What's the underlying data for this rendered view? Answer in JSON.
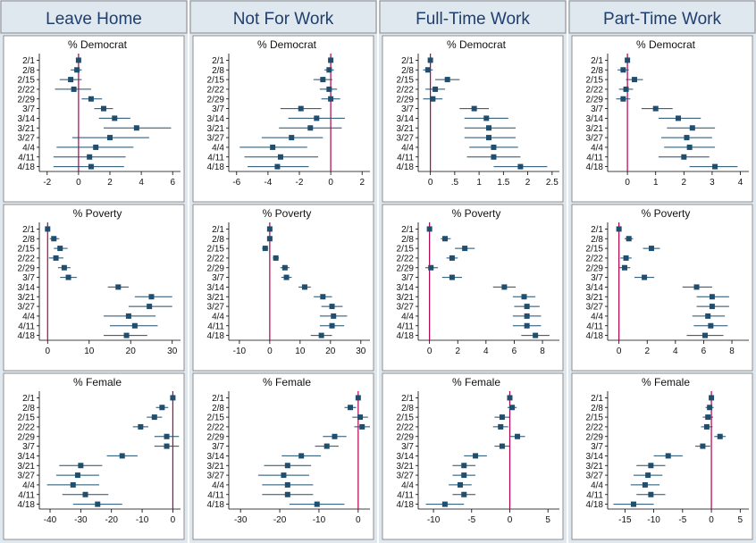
{
  "columns": [
    "Leave Home",
    "Not For Work",
    "Full-Time Work",
    "Part-Time Work"
  ],
  "row_titles": [
    "% Democrat",
    "% Poverty",
    "% Female"
  ],
  "dates": [
    "2/1",
    "2/8",
    "2/15",
    "2/22",
    "2/29",
    "3/7",
    "3/14",
    "3/21",
    "3/27",
    "4/4",
    "4/11",
    "4/18"
  ],
  "colors": {
    "header_bg": "#dfe7ef",
    "outer_bg": "#dfe7ef",
    "marker": "#1f4e6e",
    "ci_line": "#1f4e6e",
    "ref_line": "#b0004e",
    "grid_line": "#000000"
  },
  "chart_data": [
    {
      "type": "scatter",
      "column": "Leave Home",
      "panel": "% Democrat",
      "ylabels": [
        "2/1",
        "2/8",
        "2/15",
        "2/22",
        "2/29",
        "3/7",
        "3/14",
        "3/21",
        "3/27",
        "4/4",
        "4/11",
        "4/18"
      ],
      "xlim": [
        -2.5,
        6.5
      ],
      "xticks": [
        -2,
        0,
        2,
        4,
        6
      ],
      "xticklabels": [
        "-2",
        "0",
        "2",
        "4",
        "6"
      ],
      "points": [
        [
          0,
          -0.1,
          0.1
        ],
        [
          -0.1,
          -0.5,
          0.2
        ],
        [
          -0.5,
          -1.2,
          0.2
        ],
        [
          -0.3,
          -1.5,
          0.8
        ],
        [
          0.8,
          0.2,
          1.5
        ],
        [
          1.6,
          1.0,
          2.2
        ],
        [
          2.3,
          1.3,
          3.3
        ],
        [
          3.7,
          1.6,
          5.9
        ],
        [
          2.0,
          -0.4,
          4.5
        ],
        [
          1.1,
          -1.4,
          3.5
        ],
        [
          0.7,
          -1.6,
          3.0
        ],
        [
          0.8,
          -1.6,
          2.9
        ]
      ]
    },
    {
      "type": "scatter",
      "column": "Not For Work",
      "panel": "% Democrat",
      "ylabels": [
        "2/1",
        "2/8",
        "2/15",
        "2/22",
        "2/29",
        "3/7",
        "3/14",
        "3/21",
        "3/27",
        "4/4",
        "4/11",
        "4/18"
      ],
      "xlim": [
        -6.5,
        2.5
      ],
      "xticks": [
        -6,
        -4,
        -2,
        0,
        2
      ],
      "xticklabels": [
        "-6",
        "-4",
        "-2",
        "0",
        "2"
      ],
      "points": [
        [
          0,
          -0.1,
          0.1
        ],
        [
          -0.1,
          -0.4,
          0.2
        ],
        [
          -0.5,
          -1.1,
          0.1
        ],
        [
          -0.1,
          -0.7,
          0.4
        ],
        [
          0,
          -0.6,
          0.6
        ],
        [
          -1.9,
          -3.2,
          -0.6
        ],
        [
          -0.9,
          -2.7,
          0.9
        ],
        [
          -1.3,
          -3.3,
          0.7
        ],
        [
          -2.5,
          -4.4,
          -0.5
        ],
        [
          -3.7,
          -5.8,
          -1.5
        ],
        [
          -3.2,
          -5.5,
          -0.8
        ],
        [
          -3.4,
          -5.3,
          -1.4
        ]
      ]
    },
    {
      "type": "scatter",
      "column": "Full-Time Work",
      "panel": "% Democrat",
      "ylabels": [
        "2/1",
        "2/8",
        "2/15",
        "2/22",
        "2/29",
        "3/7",
        "3/14",
        "3/21",
        "3/27",
        "4/4",
        "4/11",
        "4/18"
      ],
      "xlim": [
        -0.25,
        2.65
      ],
      "xticks": [
        0,
        0.5,
        1,
        1.5,
        2,
        2.5
      ],
      "xticklabels": [
        "0",
        ".5",
        "1",
        "1.5",
        "2",
        "2.5"
      ],
      "points": [
        [
          0,
          -0.02,
          0.02
        ],
        [
          -0.05,
          -0.15,
          0.05
        ],
        [
          0.35,
          0.1,
          0.6
        ],
        [
          0.1,
          -0.1,
          0.3
        ],
        [
          0.05,
          -0.15,
          0.25
        ],
        [
          0.9,
          0.6,
          1.2
        ],
        [
          1.15,
          0.7,
          1.6
        ],
        [
          1.2,
          0.7,
          1.75
        ],
        [
          1.2,
          0.7,
          1.75
        ],
        [
          1.3,
          0.8,
          1.8
        ],
        [
          1.3,
          0.75,
          1.85
        ],
        [
          1.85,
          1.3,
          2.4
        ]
      ]
    },
    {
      "type": "scatter",
      "column": "Part-Time Work",
      "panel": "% Democrat",
      "ylabels": [
        "2/1",
        "2/8",
        "2/15",
        "2/22",
        "2/29",
        "3/7",
        "3/14",
        "3/21",
        "3/27",
        "4/4",
        "4/11",
        "4/18"
      ],
      "xlim": [
        -0.7,
        4.3
      ],
      "xticks": [
        0,
        1,
        2,
        3,
        4
      ],
      "xticklabels": [
        "0",
        "1",
        "2",
        "3",
        "4"
      ],
      "points": [
        [
          0,
          -0.05,
          0.05
        ],
        [
          -0.15,
          -0.35,
          0.05
        ],
        [
          0.25,
          -0.05,
          0.55
        ],
        [
          -0.05,
          -0.3,
          0.2
        ],
        [
          -0.15,
          -0.4,
          0.1
        ],
        [
          1.0,
          0.5,
          1.6
        ],
        [
          1.8,
          1.1,
          2.6
        ],
        [
          2.3,
          1.4,
          3.1
        ],
        [
          2.1,
          1.2,
          3.0
        ],
        [
          2.2,
          1.3,
          3.1
        ],
        [
          2.0,
          1.1,
          2.9
        ],
        [
          3.1,
          2.2,
          3.9
        ]
      ]
    },
    {
      "type": "scatter",
      "column": "Leave Home",
      "panel": "% Poverty",
      "ylabels": [
        "2/1",
        "2/8",
        "2/15",
        "2/22",
        "2/29",
        "3/7",
        "3/14",
        "3/21",
        "3/27",
        "4/4",
        "4/11",
        "4/18"
      ],
      "xlim": [
        -2,
        32
      ],
      "xticks": [
        0,
        10,
        20,
        30
      ],
      "xticklabels": [
        "0",
        "10",
        "20",
        "30"
      ],
      "points": [
        [
          0,
          -0.3,
          0.3
        ],
        [
          1.5,
          0.5,
          2.8
        ],
        [
          3.0,
          1.5,
          4.8
        ],
        [
          2.0,
          0.3,
          3.8
        ],
        [
          4.0,
          2.5,
          5.5
        ],
        [
          5.0,
          3.0,
          7.0
        ],
        [
          17.0,
          14.5,
          19.5
        ],
        [
          25.0,
          21.0,
          30.0
        ],
        [
          24.5,
          19.5,
          30.0
        ],
        [
          19.5,
          13.5,
          26.0
        ],
        [
          21.0,
          15.0,
          26.5
        ],
        [
          19.0,
          13.5,
          24.0
        ]
      ]
    },
    {
      "type": "scatter",
      "column": "Not For Work",
      "panel": "% Poverty",
      "ylabels": [
        "2/1",
        "2/8",
        "2/15",
        "2/22",
        "2/29",
        "3/7",
        "3/14",
        "3/21",
        "3/27",
        "4/4",
        "4/11",
        "4/18"
      ],
      "xlim": [
        -13.5,
        33
      ],
      "xticks": [
        -10,
        0,
        10,
        20,
        30
      ],
      "xticklabels": [
        "-10",
        "0",
        "10",
        "20",
        "30"
      ],
      "points": [
        [
          0,
          -0.8,
          0.8
        ],
        [
          0,
          -0.8,
          0.8
        ],
        [
          -1.5,
          -2.5,
          -0.5
        ],
        [
          2.0,
          1.0,
          3.0
        ],
        [
          5.0,
          3.5,
          6.5
        ],
        [
          5.5,
          3.8,
          7.2
        ],
        [
          11.5,
          9.5,
          13.5
        ],
        [
          17.5,
          14.5,
          20.5
        ],
        [
          20.5,
          17.0,
          24.0
        ],
        [
          21.0,
          16.5,
          25.5
        ],
        [
          20.5,
          16.5,
          24.5
        ],
        [
          17.0,
          13.5,
          20.5
        ]
      ]
    },
    {
      "type": "scatter",
      "column": "Full-Time Work",
      "panel": "% Poverty",
      "ylabels": [
        "2/1",
        "2/8",
        "2/15",
        "2/22",
        "2/29",
        "3/7",
        "3/14",
        "3/21",
        "3/27",
        "4/4",
        "4/11",
        "4/18"
      ],
      "xlim": [
        -0.8,
        9.2
      ],
      "xticks": [
        0,
        2,
        4,
        6,
        8
      ],
      "xticklabels": [
        "0",
        "2",
        "4",
        "6",
        "8"
      ],
      "points": [
        [
          0,
          -0.1,
          0.1
        ],
        [
          1.1,
          0.8,
          1.5
        ],
        [
          2.5,
          1.8,
          3.2
        ],
        [
          1.6,
          1.2,
          2.0
        ],
        [
          0.1,
          -0.3,
          0.6
        ],
        [
          1.6,
          0.9,
          2.3
        ],
        [
          5.3,
          4.5,
          6.1
        ],
        [
          6.7,
          5.9,
          7.5
        ],
        [
          6.9,
          6.0,
          7.8
        ],
        [
          6.9,
          5.9,
          7.9
        ],
        [
          6.9,
          5.9,
          7.9
        ],
        [
          7.5,
          6.5,
          8.5
        ]
      ]
    },
    {
      "type": "scatter",
      "column": "Part-Time Work",
      "panel": "% Poverty",
      "ylabels": [
        "2/1",
        "2/8",
        "2/15",
        "2/22",
        "2/29",
        "3/7",
        "3/14",
        "3/21",
        "3/27",
        "4/4",
        "4/11",
        "4/18"
      ],
      "xlim": [
        -0.8,
        9.2
      ],
      "xticks": [
        0,
        2,
        4,
        6,
        8
      ],
      "xticklabels": [
        "0",
        "2",
        "4",
        "6",
        "8"
      ],
      "points": [
        [
          0,
          -0.1,
          0.1
        ],
        [
          0.7,
          0.4,
          1.0
        ],
        [
          2.3,
          1.7,
          2.9
        ],
        [
          0.5,
          0.1,
          0.9
        ],
        [
          0.4,
          0.0,
          0.8
        ],
        [
          1.8,
          1.1,
          2.5
        ],
        [
          5.5,
          4.5,
          6.6
        ],
        [
          6.6,
          5.5,
          7.8
        ],
        [
          6.6,
          5.5,
          7.8
        ],
        [
          6.3,
          5.2,
          7.5
        ],
        [
          6.5,
          5.3,
          7.7
        ],
        [
          6.1,
          4.8,
          7.4
        ]
      ]
    },
    {
      "type": "scatter",
      "column": "Leave Home",
      "panel": "% Female",
      "ylabels": [
        "2/1",
        "2/8",
        "2/15",
        "2/22",
        "2/29",
        "3/7",
        "3/14",
        "3/21",
        "3/27",
        "4/4",
        "4/11",
        "4/18"
      ],
      "xlim": [
        -43.5,
        2.5
      ],
      "xticks": [
        -40,
        -30,
        -20,
        -10,
        0
      ],
      "xticklabels": [
        "-40",
        "-30",
        "-20",
        "-10",
        "0"
      ],
      "points": [
        [
          0,
          -0.8,
          0.8
        ],
        [
          -3.5,
          -5.5,
          -1.5
        ],
        [
          -6.0,
          -8.5,
          -3.5
        ],
        [
          -10.5,
          -13.0,
          -8.0
        ],
        [
          -2.0,
          -6.0,
          2.0
        ],
        [
          -2.0,
          -6.0,
          2.0
        ],
        [
          -16.5,
          -21.5,
          -11.5
        ],
        [
          -30.0,
          -37.0,
          -23.0
        ],
        [
          -31.0,
          -38.0,
          -24.0
        ],
        [
          -32.5,
          -41.0,
          -24.0
        ],
        [
          -28.5,
          -36.0,
          -21.0
        ],
        [
          -24.5,
          -32.5,
          -16.5
        ]
      ]
    },
    {
      "type": "scatter",
      "column": "Not For Work",
      "panel": "% Female",
      "ylabels": [
        "2/1",
        "2/8",
        "2/15",
        "2/22",
        "2/29",
        "3/7",
        "3/14",
        "3/21",
        "3/27",
        "4/4",
        "4/11",
        "4/18"
      ],
      "xlim": [
        -33,
        3
      ],
      "xticks": [
        -30,
        -20,
        -10,
        0
      ],
      "xticklabels": [
        "-30",
        "-20",
        "-10",
        "0"
      ],
      "points": [
        [
          0,
          -0.6,
          0.6
        ],
        [
          -2.0,
          -3.5,
          -0.5
        ],
        [
          0.5,
          -1.5,
          2.5
        ],
        [
          1.0,
          -1.0,
          3.0
        ],
        [
          -6.0,
          -9.0,
          -3.0
        ],
        [
          -8.0,
          -11.0,
          -5.0
        ],
        [
          -14.5,
          -19.5,
          -9.5
        ],
        [
          -18.0,
          -24.0,
          -12.0
        ],
        [
          -19.0,
          -25.5,
          -12.5
        ],
        [
          -18.0,
          -24.5,
          -11.5
        ],
        [
          -18.0,
          -24.5,
          -11.5
        ],
        [
          -10.5,
          -17.5,
          -3.5
        ]
      ]
    },
    {
      "type": "scatter",
      "column": "Full-Time Work",
      "panel": "% Female",
      "ylabels": [
        "2/1",
        "2/8",
        "2/15",
        "2/22",
        "2/29",
        "3/7",
        "3/14",
        "3/21",
        "3/27",
        "4/4",
        "4/11",
        "4/18"
      ],
      "xlim": [
        -12,
        6.5
      ],
      "xticks": [
        -10,
        -5,
        0,
        5
      ],
      "xticklabels": [
        "-10",
        "-5",
        "0",
        "5"
      ],
      "points": [
        [
          0,
          -0.2,
          0.2
        ],
        [
          0.3,
          -0.3,
          0.9
        ],
        [
          -1.0,
          -2.0,
          0.0
        ],
        [
          -1.2,
          -2.2,
          -0.2
        ],
        [
          1.0,
          0.0,
          2.0
        ],
        [
          -1.0,
          -2.0,
          0.0
        ],
        [
          -4.5,
          -6.0,
          -3.0
        ],
        [
          -6.0,
          -7.5,
          -4.5
        ],
        [
          -6.0,
          -7.5,
          -4.5
        ],
        [
          -6.5,
          -8.0,
          -5.0
        ],
        [
          -6.0,
          -7.5,
          -4.5
        ],
        [
          -8.5,
          -11.0,
          -6.0
        ]
      ]
    },
    {
      "type": "scatter",
      "column": "Part-Time Work",
      "panel": "% Female",
      "ylabels": [
        "2/1",
        "2/8",
        "2/15",
        "2/22",
        "2/29",
        "3/7",
        "3/14",
        "3/21",
        "3/27",
        "4/4",
        "4/11",
        "4/18"
      ],
      "xlim": [
        -18,
        6.5
      ],
      "xticks": [
        -15,
        -10,
        -5,
        0,
        5
      ],
      "xticklabels": [
        "-15",
        "-10",
        "-5",
        "0",
        "5"
      ],
      "points": [
        [
          0,
          -0.3,
          0.3
        ],
        [
          -0.3,
          -1.0,
          0.4
        ],
        [
          -0.6,
          -1.5,
          0.3
        ],
        [
          -0.8,
          -1.8,
          0.2
        ],
        [
          1.5,
          0.5,
          2.5
        ],
        [
          -1.5,
          -2.8,
          -0.2
        ],
        [
          -7.5,
          -10.0,
          -5.0
        ],
        [
          -10.5,
          -13.0,
          -8.0
        ],
        [
          -11.0,
          -13.5,
          -8.5
        ],
        [
          -11.5,
          -14.0,
          -9.0
        ],
        [
          -10.5,
          -13.0,
          -8.0
        ],
        [
          -13.5,
          -17.0,
          -10.0
        ]
      ]
    }
  ]
}
